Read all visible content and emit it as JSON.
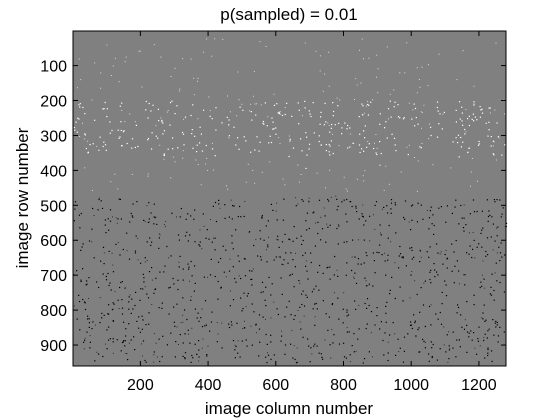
{
  "chart_data": {
    "type": "heatmap",
    "title": "p(sampled) = 0.01",
    "xlabel": "image column number",
    "ylabel": "image row number",
    "xlim": [
      1,
      1280
    ],
    "ylim": [
      960,
      1
    ],
    "y_reversed": true,
    "x_ticks": [
      200,
      400,
      600,
      800,
      1000,
      1200
    ],
    "x_tick_labels": [
      "200",
      "400",
      "600",
      "800",
      "1000",
      "1200"
    ],
    "y_ticks": [
      100,
      200,
      300,
      400,
      500,
      600,
      700,
      800,
      900
    ],
    "y_tick_labels": [
      "100",
      "200",
      "300",
      "400",
      "500",
      "600",
      "700",
      "800",
      "900"
    ],
    "sampling_probability": 0.01,
    "background_color": "#808080",
    "colors": {
      "bright_samples": "#ffffff",
      "dark_samples": "#000000"
    },
    "grid": false,
    "legend": false
  }
}
